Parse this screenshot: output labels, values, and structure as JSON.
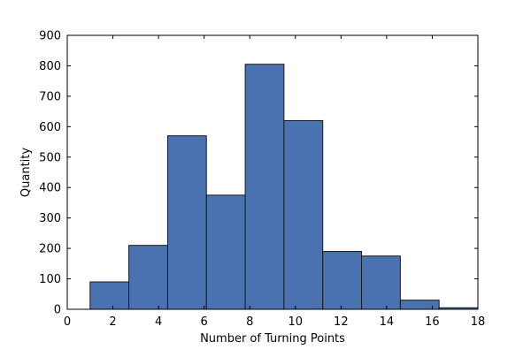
{
  "chart_data": {
    "type": "bar",
    "title": "",
    "xlabel": "Number of Turning Points",
    "ylabel": "Quantity",
    "xlim": [
      0,
      18
    ],
    "ylim": [
      0,
      900
    ],
    "x_ticks": [
      0,
      2,
      4,
      6,
      8,
      10,
      12,
      14,
      16,
      18
    ],
    "y_ticks": [
      0,
      100,
      200,
      300,
      400,
      500,
      600,
      700,
      800,
      900
    ],
    "bin_edges": [
      1.0,
      2.7,
      4.4,
      6.1,
      7.8,
      9.5,
      11.2,
      12.9,
      14.6,
      16.3,
      18.0
    ],
    "values": [
      90,
      210,
      570,
      375,
      805,
      620,
      190,
      175,
      30,
      5
    ],
    "grid": false,
    "legend": "none",
    "bar_color": "#4a72b0",
    "edge_color": "#1a1a1a"
  }
}
